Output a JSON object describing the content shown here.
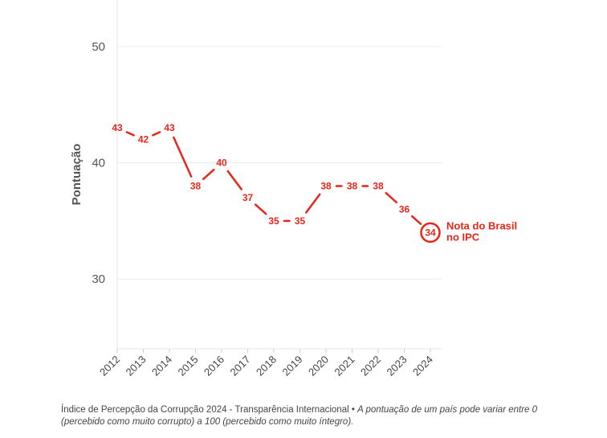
{
  "chart_data": {
    "type": "line",
    "ylabel": "Pontuação",
    "xlabel": "",
    "ylim": [
      24,
      54
    ],
    "yticks": [
      30,
      40,
      50
    ],
    "grid": true,
    "x": [
      "2012",
      "2013",
      "2014",
      "2015",
      "2016",
      "2017",
      "2018",
      "2019",
      "2020",
      "2021",
      "2022",
      "2023",
      "2024"
    ],
    "series": [
      {
        "values": [
          43,
          42,
          43,
          38,
          40,
          37,
          35,
          35,
          38,
          38,
          38,
          36,
          34
        ]
      }
    ],
    "annotation": {
      "line1": "Nota do Brasil",
      "line2": "no IPC"
    },
    "color": "#e8261a"
  },
  "footer": {
    "source": "Índice de Percepção da Corrupção 2024 - Transparência Internacional • ",
    "note": "A pontuação de um país pode variar entre 0 (percebido como muito corrupto) a 100 (percebido como muito íntegro)."
  }
}
